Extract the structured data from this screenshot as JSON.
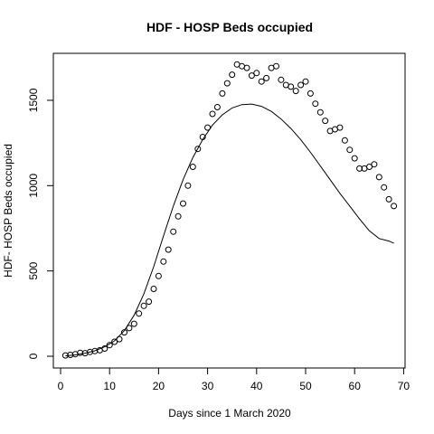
{
  "chart_data": {
    "type": "scatter",
    "title": "HDF - HOSP Beds occupied",
    "xlabel": "Days since 1 March 2020",
    "ylabel": "HDF- HOSP Beds occupied",
    "xlim": [
      0,
      70
    ],
    "ylim": [
      0,
      1750
    ],
    "x_ticks": [
      "0",
      "10",
      "20",
      "30",
      "40",
      "50",
      "60",
      "70"
    ],
    "y_ticks": [
      "0",
      "500",
      "1000",
      "1500"
    ],
    "grid": false,
    "legend": "none",
    "series": [
      {
        "type": "points",
        "x": [
          1,
          2,
          3,
          4,
          5,
          6,
          7,
          8,
          9,
          10,
          11,
          12,
          13,
          14,
          15,
          16,
          17,
          18,
          19,
          20,
          21,
          22,
          23,
          24,
          25,
          26,
          27,
          28,
          29,
          30,
          31,
          32,
          33,
          34,
          35,
          36,
          37,
          38,
          39,
          40,
          41,
          42,
          43,
          44,
          45,
          46,
          47,
          48,
          49,
          50,
          51,
          52,
          53,
          54,
          55,
          56,
          57,
          58,
          59,
          60,
          61,
          62,
          63,
          64,
          65,
          66,
          67,
          68
        ],
        "y": [
          5,
          8,
          12,
          20,
          18,
          25,
          30,
          35,
          45,
          65,
          85,
          100,
          140,
          165,
          190,
          250,
          295,
          320,
          395,
          470,
          555,
          625,
          730,
          820,
          895,
          1000,
          1110,
          1215,
          1285,
          1340,
          1420,
          1460,
          1540,
          1600,
          1650,
          1710,
          1700,
          1690,
          1645,
          1660,
          1610,
          1630,
          1690,
          1700,
          1620,
          1590,
          1580,
          1555,
          1590,
          1610,
          1540,
          1480,
          1430,
          1380,
          1320,
          1330,
          1340,
          1265,
          1210,
          1160,
          1100,
          1100,
          1110,
          1125,
          1050,
          990,
          920,
          880
        ]
      },
      {
        "type": "line",
        "x": [
          1,
          3,
          5,
          7,
          9,
          11,
          13,
          15,
          17,
          19,
          21,
          23,
          25,
          27,
          29,
          31,
          33,
          35,
          37,
          39,
          41,
          43,
          45,
          47,
          49,
          51,
          53,
          55,
          57,
          59,
          61,
          63,
          65,
          67,
          68
        ],
        "y": [
          2,
          8,
          18,
          32,
          55,
          90,
          150,
          240,
          365,
          525,
          705,
          880,
          1035,
          1165,
          1270,
          1355,
          1415,
          1455,
          1475,
          1478,
          1465,
          1435,
          1390,
          1335,
          1270,
          1195,
          1115,
          1035,
          955,
          880,
          805,
          735,
          690,
          675,
          662
        ]
      }
    ]
  }
}
